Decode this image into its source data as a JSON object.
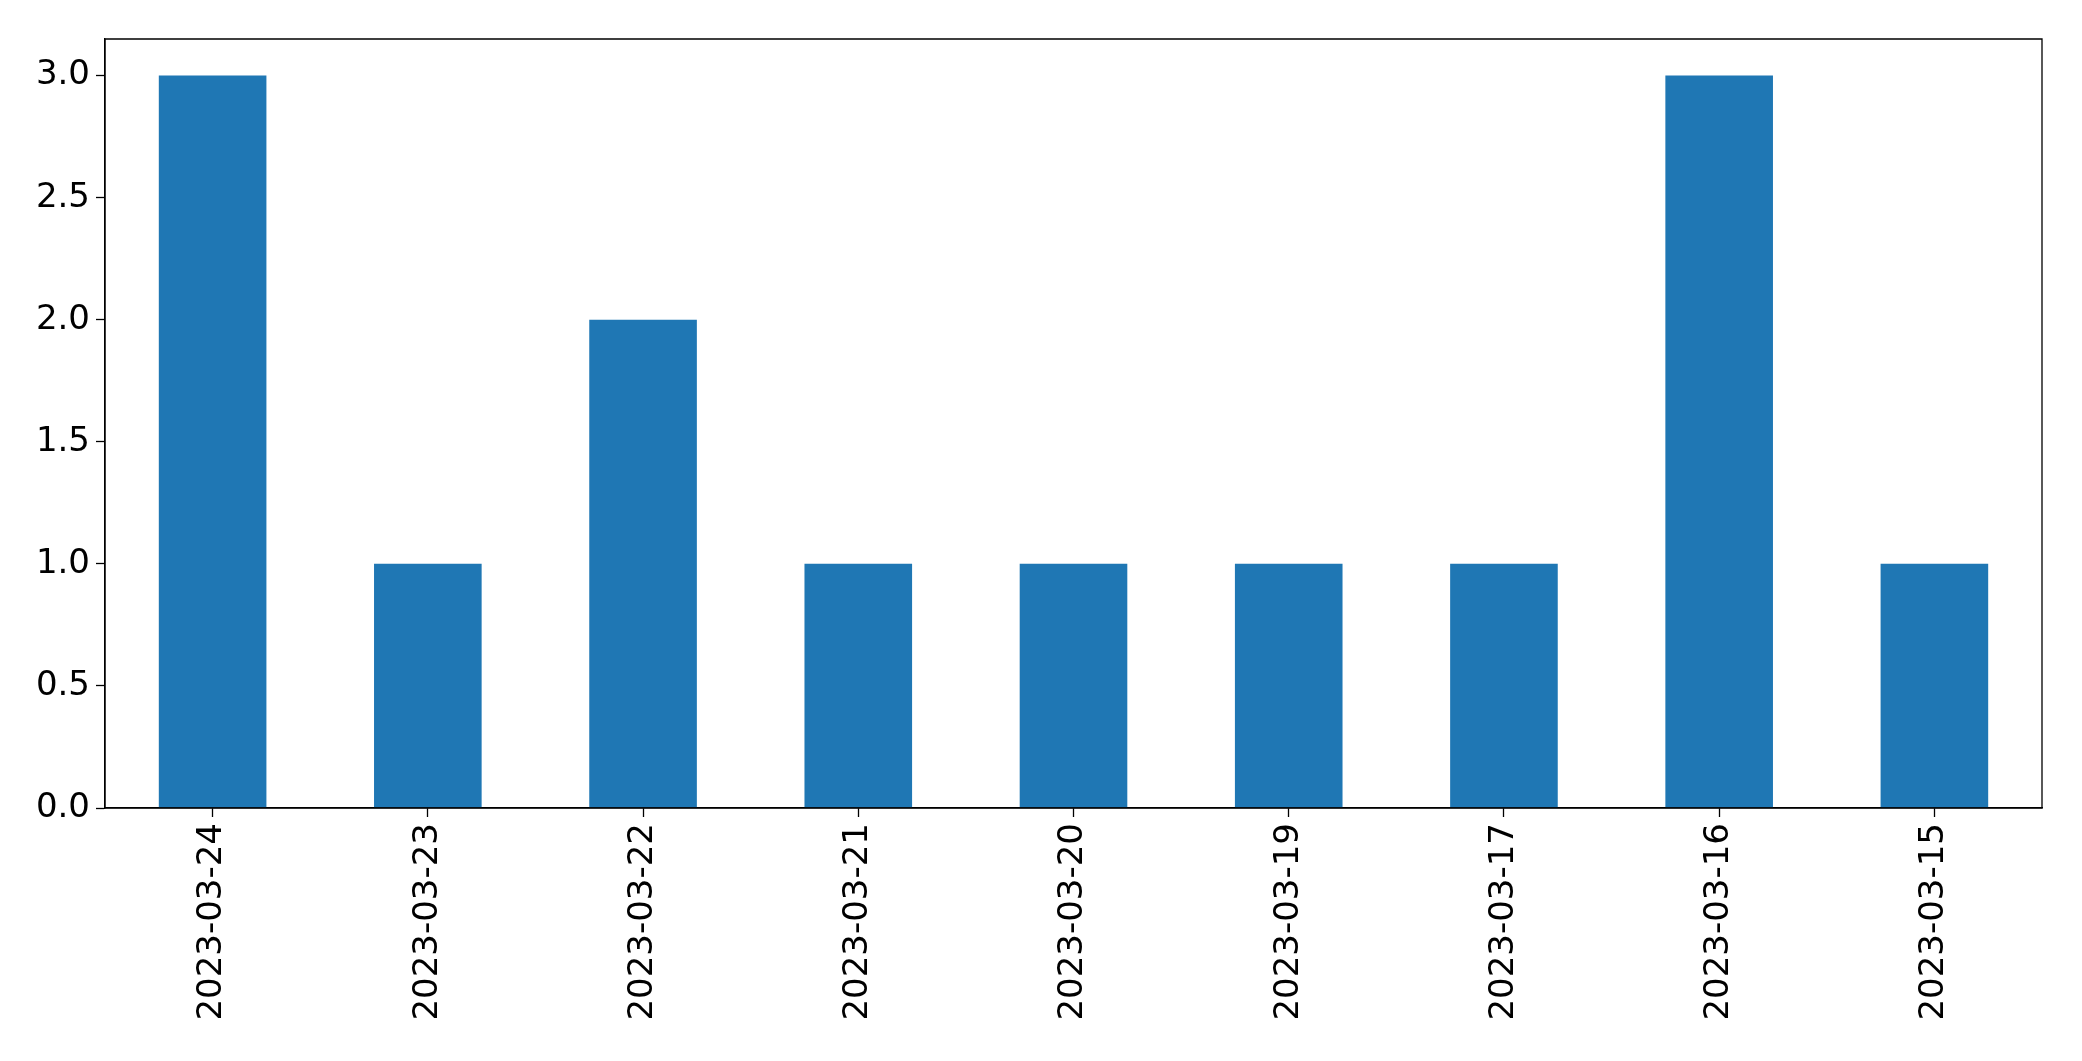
{
  "chart_data": {
    "type": "bar",
    "categories": [
      "2023-03-24",
      "2023-03-23",
      "2023-03-22",
      "2023-03-21",
      "2023-03-20",
      "2023-03-19",
      "2023-03-17",
      "2023-03-16",
      "2023-03-15"
    ],
    "values": [
      3,
      1,
      2,
      1,
      1,
      1,
      1,
      3,
      1
    ],
    "color": "#1f77b4",
    "ylim": [
      0,
      3.15
    ],
    "yticks": [
      {
        "value": 0,
        "label": "0.0"
      },
      {
        "value": 0.5,
        "label": "0.5"
      },
      {
        "value": 1,
        "label": "1.0"
      },
      {
        "value": 1.5,
        "label": "1.5"
      },
      {
        "value": 2,
        "label": "2.0"
      },
      {
        "value": 2.5,
        "label": "2.5"
      },
      {
        "value": 3,
        "label": "3.0"
      }
    ]
  }
}
